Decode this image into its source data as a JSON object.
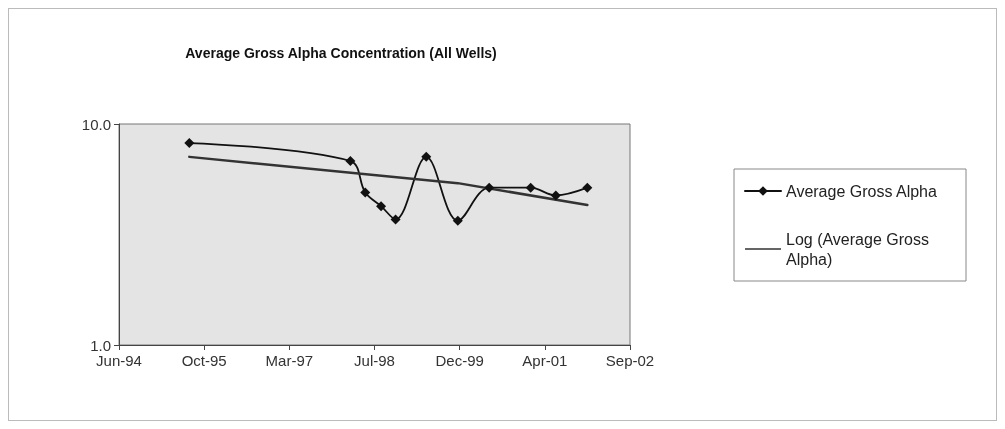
{
  "chart_data": {
    "type": "line",
    "title": "Average Gross Alpha Concentration (All Wells)",
    "series": [
      {
        "name": "Average Gross Alpha",
        "color": "#111111",
        "marker": "diamond",
        "x": [
          "1995-07-23",
          "1998-03-04",
          "1998-05-31",
          "1998-09-02",
          "1998-11-27",
          "1999-05-28",
          "1999-12-01",
          "2000-06-04",
          "2001-02-05",
          "2001-07-04",
          "2002-01-07"
        ],
        "values": [
          8.2,
          6.8,
          4.9,
          4.25,
          3.7,
          7.1,
          3.65,
          5.15,
          5.15,
          4.75,
          5.15
        ]
      },
      {
        "name": "Log (Average Gross Alpha)",
        "color": "#333333",
        "marker": "none",
        "x": [
          "1995-07-23",
          "1999-12-01",
          "2002-01-07"
        ],
        "values": [
          7.1,
          5.4,
          4.3
        ]
      }
    ],
    "xlim": [
      "1994-06-01",
      "2002-09-17"
    ],
    "xticks": [
      {
        "value": "1994-06-01",
        "label": "Jun-94"
      },
      {
        "value": "1995-10-19",
        "label": "Oct-95"
      },
      {
        "value": "1997-03-07",
        "label": "Mar-97"
      },
      {
        "value": "1998-07-25",
        "label": "Jul-98"
      },
      {
        "value": "1999-12-12",
        "label": "Dec-99"
      },
      {
        "value": "2001-04-30",
        "label": "Apr-01"
      },
      {
        "value": "2002-09-17",
        "label": "Sep-02"
      }
    ],
    "ylim": [
      1,
      10
    ],
    "yticks": [
      {
        "value": 1,
        "label": "1.0"
      },
      {
        "value": 10,
        "label": "10.0"
      }
    ],
    "log": true,
    "grid": false,
    "legend": "right"
  }
}
